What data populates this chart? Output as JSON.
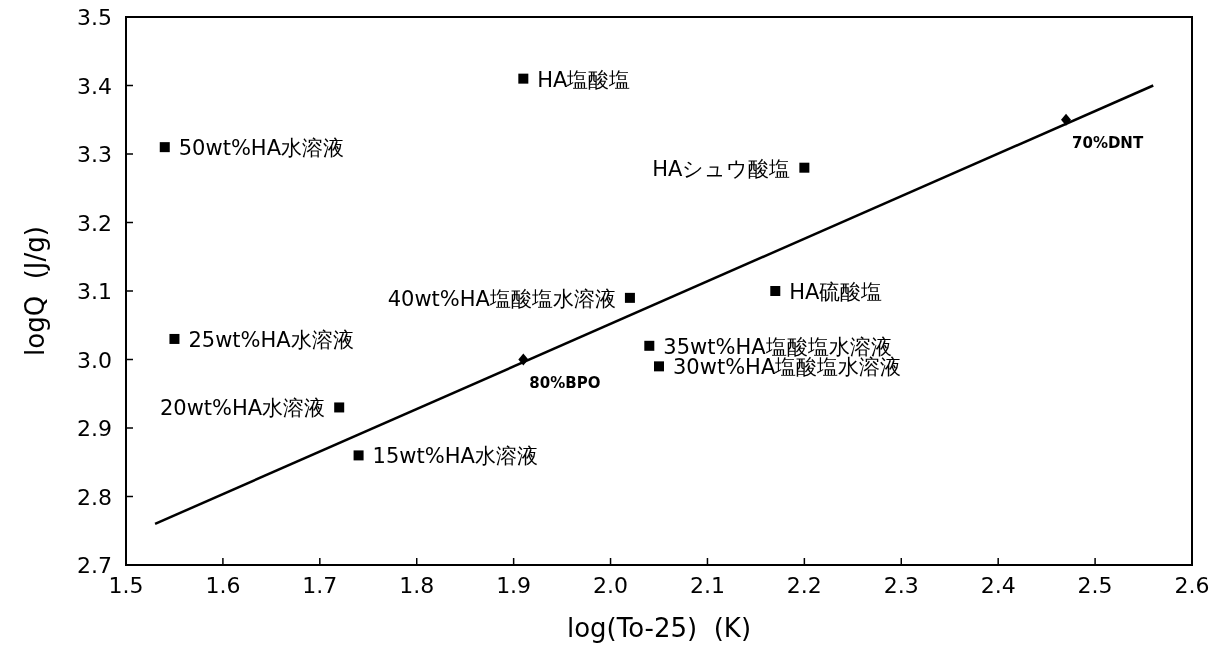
{
  "chart_data": {
    "type": "scatter",
    "xlabel": "log(To-25)  (K)",
    "ylabel": "logQ  (J/g)",
    "xlim": [
      1.5,
      2.6
    ],
    "ylim": [
      2.7,
      3.5
    ],
    "xticks": [
      1.5,
      1.6,
      1.7,
      1.8,
      1.9,
      {
        "value": 2.0,
        "label": "2.0"
      },
      2.1,
      2.2,
      2.3,
      2.4,
      2.5,
      2.6
    ],
    "yticks": [
      2.7,
      2.8,
      2.9,
      {
        "value": 3.0,
        "label": "3.0"
      },
      3.1,
      3.2,
      3.3,
      3.4,
      3.5
    ],
    "grid": false,
    "series": [
      {
        "marker": "square",
        "color": "#000000",
        "x": [
          1.91,
          1.54,
          2.2,
          2.02,
          2.17,
          1.55,
          2.04,
          2.05,
          1.72,
          1.74
        ],
        "values": [
          3.41,
          3.31,
          3.28,
          3.09,
          3.1,
          3.03,
          3.02,
          2.99,
          2.93,
          2.86
        ]
      },
      {
        "marker": "diamond",
        "color": "#000000",
        "x": [
          1.91,
          2.47
        ],
        "values": [
          3.0,
          3.35
        ]
      },
      {
        "type": "line",
        "marker": "none",
        "color": "#000000",
        "x": [
          1.53,
          2.56
        ],
        "values": [
          2.76,
          3.4
        ]
      }
    ],
    "annotations": [
      {
        "text": "HA塩酸塩",
        "x": 1.91,
        "y": 3.41
      },
      {
        "text": "50wt%HA水溶液",
        "x": 1.54,
        "y": 3.31
      },
      {
        "text": "HAシュウ酸塩",
        "x": 2.2,
        "y": 3.28
      },
      {
        "text": "40wt%HA塩酸塩水溶液",
        "x": 2.02,
        "y": 3.09
      },
      {
        "text": "HA硫酸塩",
        "x": 2.17,
        "y": 3.1
      },
      {
        "text": "25wt%HA水溶液",
        "x": 1.55,
        "y": 3.03
      },
      {
        "text": "35wt%HA塩酸塩水溶液",
        "x": 2.04,
        "y": 3.02
      },
      {
        "text": "30wt%HA塩酸塩水溶液",
        "x": 2.05,
        "y": 2.99
      },
      {
        "text": "20wt%HA水溶液",
        "x": 1.72,
        "y": 2.93
      },
      {
        "text": "15wt%HA水溶液",
        "x": 1.74,
        "y": 2.86
      },
      {
        "text": "80%BPO",
        "x": 1.91,
        "y": 3.0
      },
      {
        "text": "70%DNT",
        "x": 2.47,
        "y": 3.35
      }
    ]
  }
}
